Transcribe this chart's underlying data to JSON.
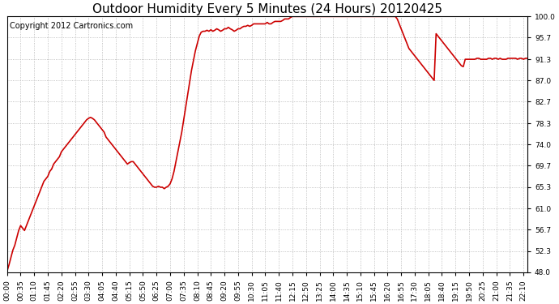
{
  "title": "Outdoor Humidity Every 5 Minutes (24 Hours) 20120425",
  "copyright_text": "Copyright 2012 Cartronics.com",
  "line_color": "#cc0000",
  "background_color": "#ffffff",
  "plot_bg_color": "#ffffff",
  "grid_color": "#b0b0b0",
  "ylim": [
    48.0,
    100.0
  ],
  "yticks": [
    48.0,
    52.3,
    56.7,
    61.0,
    65.3,
    69.7,
    74.0,
    78.3,
    82.7,
    87.0,
    91.3,
    95.7,
    100.0
  ],
  "title_fontsize": 11,
  "tick_fontsize": 6.5,
  "copyright_fontsize": 7,
  "line_width": 1.2,
  "humidity_values": [
    48.2,
    49.5,
    51.0,
    52.5,
    53.5,
    55.0,
    56.5,
    57.5,
    57.0,
    56.5,
    57.5,
    58.5,
    59.5,
    60.5,
    61.5,
    62.5,
    63.5,
    64.5,
    65.5,
    66.5,
    67.0,
    67.5,
    68.5,
    69.0,
    70.0,
    70.5,
    71.0,
    71.5,
    72.5,
    73.0,
    73.5,
    74.0,
    74.5,
    75.0,
    75.5,
    76.0,
    76.5,
    77.0,
    77.5,
    78.0,
    78.5,
    79.0,
    79.3,
    79.5,
    79.3,
    79.0,
    78.5,
    78.0,
    77.5,
    77.0,
    76.5,
    75.5,
    75.0,
    74.5,
    74.0,
    73.5,
    73.0,
    72.5,
    72.0,
    71.5,
    71.0,
    70.5,
    70.0,
    70.3,
    70.5,
    70.5,
    70.0,
    69.5,
    69.0,
    68.5,
    68.0,
    67.5,
    67.0,
    66.5,
    66.0,
    65.5,
    65.3,
    65.3,
    65.5,
    65.3,
    65.3,
    65.0,
    65.3,
    65.5,
    66.0,
    67.0,
    68.5,
    70.5,
    72.5,
    74.5,
    76.5,
    79.0,
    81.5,
    84.0,
    86.5,
    89.0,
    91.0,
    93.0,
    94.5,
    96.0,
    96.8,
    97.0,
    97.0,
    97.2,
    97.0,
    97.3,
    97.0,
    97.2,
    97.5,
    97.3,
    97.0,
    97.2,
    97.5,
    97.5,
    97.8,
    97.5,
    97.3,
    97.0,
    97.2,
    97.5,
    97.5,
    97.8,
    98.0,
    98.0,
    98.2,
    98.0,
    98.2,
    98.5,
    98.5,
    98.5,
    98.5,
    98.5,
    98.5,
    98.5,
    98.8,
    98.5,
    98.5,
    98.8,
    99.0,
    99.0,
    99.0,
    99.0,
    99.2,
    99.5,
    99.5,
    99.5,
    99.8,
    100.0,
    100.0,
    100.0,
    100.0,
    100.0,
    100.0,
    100.0,
    100.0,
    100.0,
    100.0,
    100.0,
    100.0,
    100.0,
    100.0,
    100.0,
    100.0,
    100.0,
    100.0,
    100.0,
    100.0,
    100.0,
    100.0,
    100.0,
    100.0,
    100.0,
    100.0,
    100.0,
    100.0,
    100.0,
    100.0,
    100.0,
    100.0,
    100.0,
    100.0,
    100.0,
    100.0,
    100.0,
    100.0,
    100.0,
    100.0,
    100.0,
    100.0,
    100.0,
    100.0,
    100.0,
    100.0,
    100.0,
    100.0,
    100.0,
    100.0,
    100.0,
    100.0,
    100.0,
    100.0,
    99.5,
    98.5,
    97.5,
    96.5,
    95.5,
    94.5,
    93.5,
    93.0,
    92.5,
    92.0,
    91.5,
    91.0,
    90.5,
    90.0,
    89.5,
    89.0,
    88.5,
    88.0,
    87.5,
    87.0,
    96.5,
    96.0,
    95.5,
    95.0,
    94.5,
    94.0,
    93.5,
    93.0,
    92.5,
    92.0,
    91.5,
    91.0,
    90.5,
    90.0,
    89.8,
    91.3,
    91.3,
    91.3,
    91.3,
    91.3,
    91.3,
    91.5,
    91.5,
    91.3,
    91.3,
    91.3,
    91.3,
    91.5,
    91.5,
    91.3,
    91.5,
    91.5,
    91.3,
    91.5,
    91.3,
    91.3,
    91.3,
    91.5,
    91.5,
    91.5,
    91.5,
    91.5,
    91.3,
    91.5,
    91.5,
    91.3,
    91.5,
    91.5
  ]
}
